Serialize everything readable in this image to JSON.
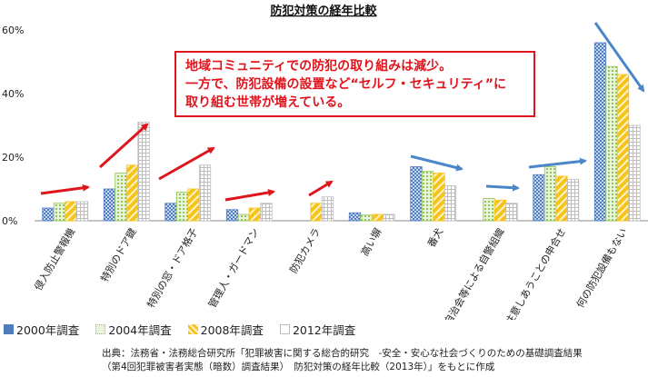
{
  "chart_data": {
    "type": "bar",
    "title": "防犯対策の経年比較",
    "ylim": [
      0,
      60
    ],
    "yticks": [
      0,
      20,
      40,
      60
    ],
    "ytick_labels": [
      "0%",
      "20%",
      "40%",
      "60%"
    ],
    "grid": false,
    "categories": [
      "侵入防止警報機",
      "特別のドア鍵",
      "特別の窓・ドア格子",
      "管理人・ガードマン",
      "防犯カメラ",
      "高い塀",
      "番犬",
      "自治会等による自警組織",
      "隣近所で注意しあうことの申合せ",
      "何の防犯設備もない"
    ],
    "series": [
      {
        "name": "2000年調査",
        "color": "#4f7cbf",
        "pattern": "checker",
        "values": [
          4,
          10,
          5.5,
          3.5,
          null,
          2.5,
          17,
          null,
          14.5,
          56
        ]
      },
      {
        "name": "2004年調査",
        "color": "#92c653",
        "pattern": "dots",
        "values": [
          5.5,
          15,
          9,
          2,
          null,
          1.8,
          15.5,
          7,
          17,
          48.5
        ]
      },
      {
        "name": "2008年調査",
        "color": "#f7c31a",
        "pattern": "stripes",
        "values": [
          6,
          17.5,
          10,
          4,
          5.5,
          2,
          15,
          6.5,
          14,
          46
        ]
      },
      {
        "name": "2012年調査",
        "color": "#bdbdbd",
        "pattern": "hatch",
        "values": [
          6,
          31,
          17.5,
          5.5,
          7.5,
          2,
          11,
          5.5,
          13,
          30
        ]
      }
    ]
  },
  "callout": {
    "lines": [
      "地域コミュニティでの防犯の取り組みは減少。",
      "一方で、防犯設備の設置など“セルフ・セキュリティ”に",
      "取り組む世帯が増えている。"
    ],
    "color": "#e0141c"
  },
  "source": {
    "line1": "出典：法務省・法務総合研究所「犯罪被害に関する総合的研究　-安全・安心な社会づくりのための基礎調査結果",
    "line2": "（第4回犯罪被害者実態（暗数）調査結果）　防犯対策の経年比較（2013年）」をもとに作成"
  }
}
